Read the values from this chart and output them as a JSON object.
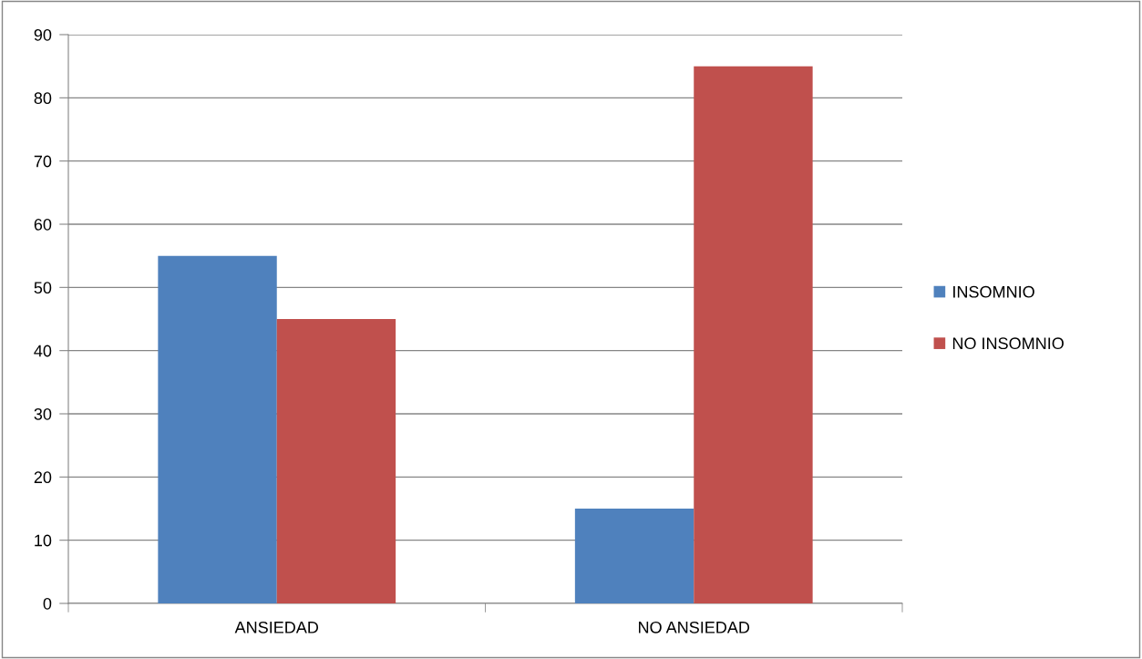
{
  "chart_data": {
    "type": "bar",
    "categories": [
      "ANSIEDAD",
      "NO ANSIEDAD"
    ],
    "series": [
      {
        "name": "INSOMNIO",
        "color": "#4f81bd",
        "values": [
          55,
          15
        ]
      },
      {
        "name": "NO INSOMNIO",
        "color": "#c0504d",
        "values": [
          45,
          85
        ]
      }
    ],
    "ylim": [
      0,
      90
    ],
    "yticks": [
      0,
      10,
      20,
      30,
      40,
      50,
      60,
      70,
      80,
      90
    ],
    "grid": "y",
    "legend": "right"
  }
}
